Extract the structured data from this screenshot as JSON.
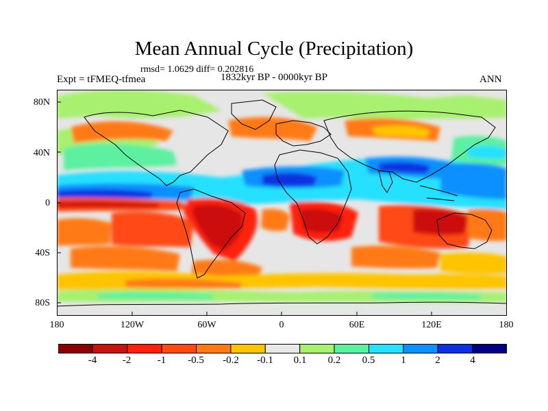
{
  "title": "Mean Annual Cycle (Precipitation)",
  "stats": "rmsd= 1.0629 diff= 0.202816",
  "experiment": "Expt = tFMEQ-tfmea",
  "period": "1832kyr BP - 0000kyr BP",
  "season": "ANN",
  "lat_ticks": [
    "80N",
    "40N",
    "0",
    "40S",
    "80S"
  ],
  "lon_ticks": [
    "180",
    "120W",
    "60W",
    "0",
    "60E",
    "120E",
    "180"
  ],
  "colorbar": {
    "labels": [
      "-4",
      "-2",
      "-1",
      "-0.5",
      "-0.2",
      "-0.1",
      "0.1",
      "0.2",
      "0.5",
      "1",
      "2",
      "4"
    ],
    "colors": [
      "#8b0000",
      "#cc1010",
      "#ff2010",
      "#ff4a14",
      "#ff7a14",
      "#ffc400",
      "#e8e8e8",
      "#a8f070",
      "#5cf0a0",
      "#28e0ff",
      "#1090ff",
      "#1030e0",
      "#000080"
    ]
  },
  "map_colors": {
    "neutral": "#e6e6e6",
    "coastline": "#000000"
  }
}
